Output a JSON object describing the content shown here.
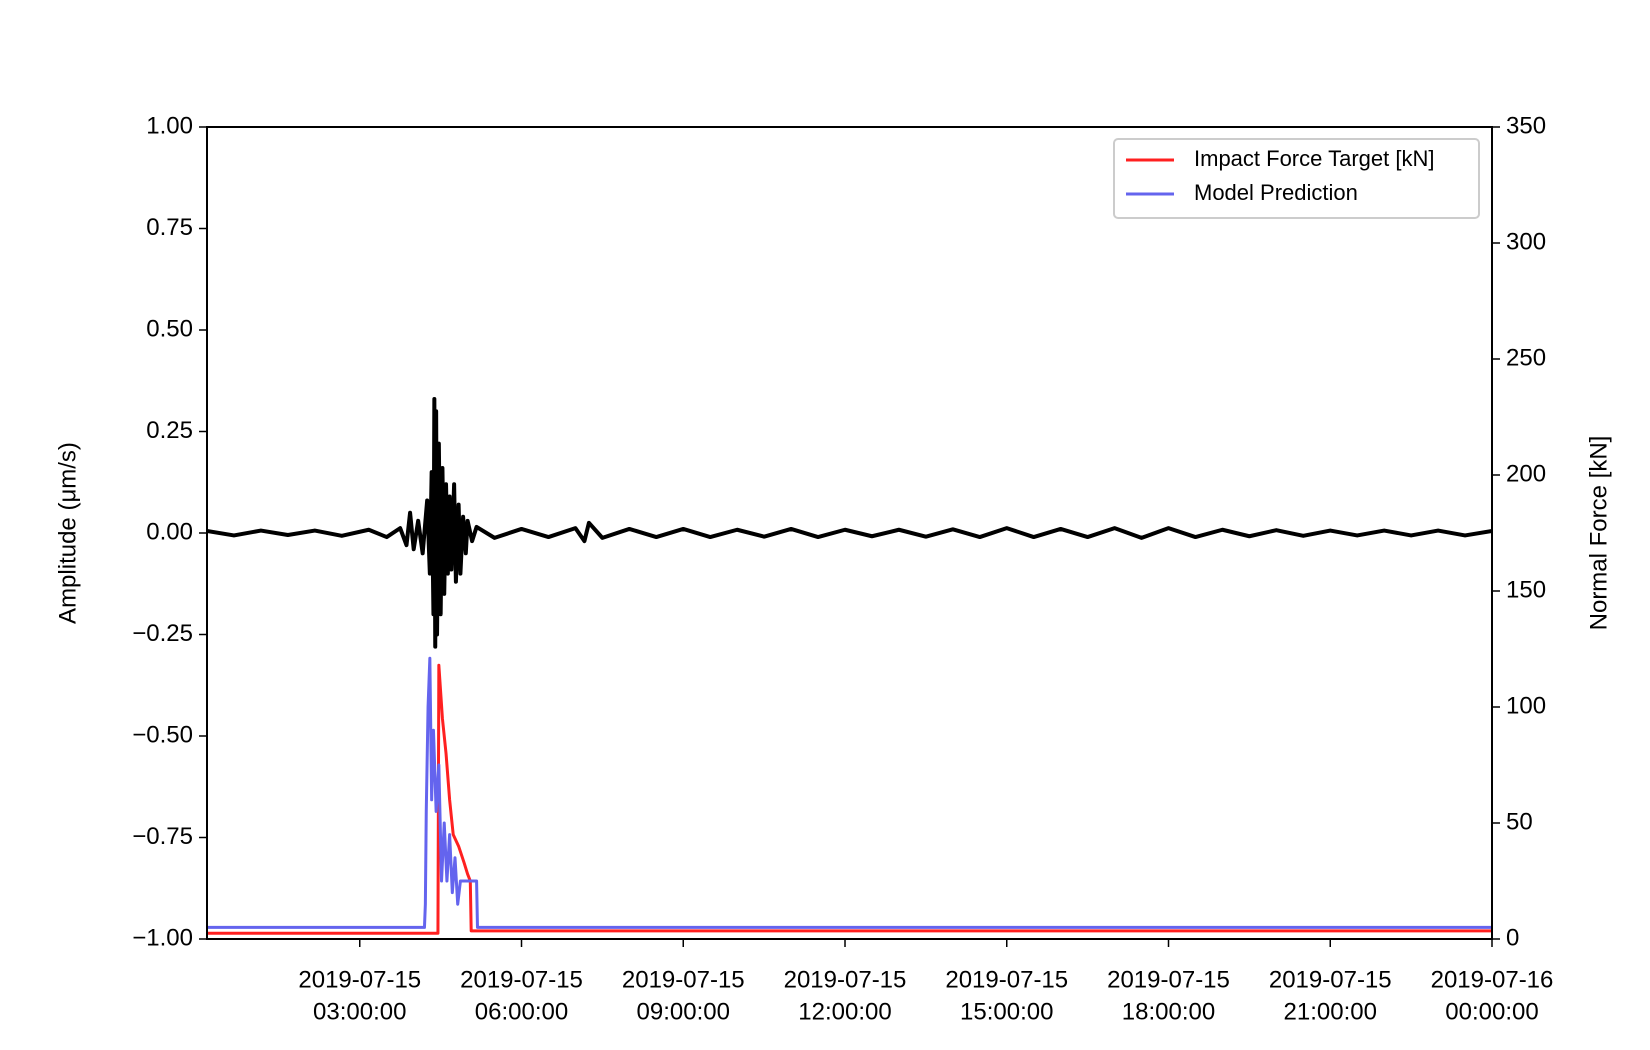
{
  "chart_data": {
    "type": "line",
    "ylabel": "Amplitude (μm/s)",
    "y2label": "Normal Force [kN]",
    "xlim": [
      "2019-07-15 00:10:00",
      "2019-07-16 00:00:00"
    ],
    "ylim": [
      -1,
      1
    ],
    "y2lim": [
      0,
      350
    ],
    "xticks": [
      {
        "value": "2019-07-15 03:00:00",
        "label": [
          "2019-07-15",
          "03:00:00"
        ]
      },
      {
        "value": "2019-07-15 06:00:00",
        "label": [
          "2019-07-15",
          "06:00:00"
        ]
      },
      {
        "value": "2019-07-15 09:00:00",
        "label": [
          "2019-07-15",
          "09:00:00"
        ]
      },
      {
        "value": "2019-07-15 12:00:00",
        "label": [
          "2019-07-15",
          "12:00:00"
        ]
      },
      {
        "value": "2019-07-15 15:00:00",
        "label": [
          "2019-07-15",
          "15:00:00"
        ]
      },
      {
        "value": "2019-07-15 18:00:00",
        "label": [
          "2019-07-15",
          "18:00:00"
        ]
      },
      {
        "value": "2019-07-15 21:00:00",
        "label": [
          "2019-07-15",
          "21:00:00"
        ]
      },
      {
        "value": "2019-07-16 00:00:00",
        "label": [
          "2019-07-16",
          "00:00:00"
        ]
      }
    ],
    "yticks": [
      {
        "value": -1,
        "label": "−1.00"
      },
      {
        "value": -0.75,
        "label": "−0.75"
      },
      {
        "value": -0.5,
        "label": "−0.50"
      },
      {
        "value": -0.25,
        "label": "−0.25"
      },
      {
        "value": 0,
        "label": "0.00"
      },
      {
        "value": 0.25,
        "label": "0.25"
      },
      {
        "value": 0.5,
        "label": "0.50"
      },
      {
        "value": 0.75,
        "label": "0.75"
      },
      {
        "value": 1,
        "label": "1.00"
      }
    ],
    "y2ticks": [
      0,
      50,
      100,
      150,
      200,
      250,
      300,
      350
    ],
    "legend": "upper right",
    "series": [
      {
        "color": "#000000",
        "x": [
          "2019-07-15 00:10:00",
          "2019-07-15 00:40:00",
          "2019-07-15 01:10:00",
          "2019-07-15 01:40:00",
          "2019-07-15 02:10:00",
          "2019-07-15 02:40:00",
          "2019-07-15 03:10:00",
          "2019-07-15 03:30:00",
          "2019-07-15 03:45:00",
          "2019-07-15 03:52:00",
          "2019-07-15 03:56:00",
          "2019-07-15 04:00:00",
          "2019-07-15 04:05:00",
          "2019-07-15 04:10:00",
          "2019-07-15 04:15:00",
          "2019-07-15 04:18:00",
          "2019-07-15 04:20:00",
          "2019-07-15 04:22:00",
          "2019-07-15 04:23:00",
          "2019-07-15 04:24:00",
          "2019-07-15 04:25:00",
          "2019-07-15 04:26:00",
          "2019-07-15 04:28:00",
          "2019-07-15 04:30:00",
          "2019-07-15 04:32:00",
          "2019-07-15 04:34:00",
          "2019-07-15 04:36:00",
          "2019-07-15 04:38:00",
          "2019-07-15 04:40:00",
          "2019-07-15 04:42:00",
          "2019-07-15 04:45:00",
          "2019-07-15 04:47:00",
          "2019-07-15 04:50:00",
          "2019-07-15 04:52:00",
          "2019-07-15 04:55:00",
          "2019-07-15 04:58:00",
          "2019-07-15 05:00:00",
          "2019-07-15 05:05:00",
          "2019-07-15 05:10:00",
          "2019-07-15 05:30:00",
          "2019-07-15 06:00:00",
          "2019-07-15 06:30:00",
          "2019-07-15 07:00:00",
          "2019-07-15 07:10:00",
          "2019-07-15 07:15:00",
          "2019-07-15 07:30:00",
          "2019-07-15 08:00:00",
          "2019-07-15 08:30:00",
          "2019-07-15 09:00:00",
          "2019-07-15 09:30:00",
          "2019-07-15 10:00:00",
          "2019-07-15 10:30:00",
          "2019-07-15 11:00:00",
          "2019-07-15 11:30:00",
          "2019-07-15 12:00:00",
          "2019-07-15 12:30:00",
          "2019-07-15 13:00:00",
          "2019-07-15 13:30:00",
          "2019-07-15 14:00:00",
          "2019-07-15 14:30:00",
          "2019-07-15 15:00:00",
          "2019-07-15 15:30:00",
          "2019-07-15 16:00:00",
          "2019-07-15 16:30:00",
          "2019-07-15 17:00:00",
          "2019-07-15 17:30:00",
          "2019-07-15 18:00:00",
          "2019-07-15 18:30:00",
          "2019-07-15 19:00:00",
          "2019-07-15 19:30:00",
          "2019-07-15 20:00:00",
          "2019-07-15 20:30:00",
          "2019-07-15 21:00:00",
          "2019-07-15 21:30:00",
          "2019-07-15 22:00:00",
          "2019-07-15 22:30:00",
          "2019-07-15 23:00:00",
          "2019-07-15 23:30:00",
          "2019-07-16 00:00:00"
        ],
        "values": [
          0.005,
          -0.006,
          0.006,
          -0.005,
          0.006,
          -0.007,
          0.008,
          -0.01,
          0.012,
          -0.03,
          0.05,
          -0.04,
          0.03,
          -0.05,
          0.08,
          -0.1,
          0.15,
          -0.2,
          0.33,
          -0.28,
          0.3,
          -0.25,
          0.22,
          -0.2,
          0.16,
          -0.15,
          0.12,
          -0.1,
          0.09,
          -0.09,
          0.12,
          -0.12,
          0.07,
          -0.1,
          0.04,
          -0.05,
          0.03,
          -0.02,
          0.015,
          -0.012,
          0.01,
          -0.01,
          0.012,
          -0.02,
          0.025,
          -0.012,
          0.01,
          -0.01,
          0.01,
          -0.01,
          0.008,
          -0.009,
          0.01,
          -0.01,
          0.008,
          -0.008,
          0.008,
          -0.009,
          0.009,
          -0.01,
          0.012,
          -0.01,
          0.01,
          -0.01,
          0.012,
          -0.012,
          0.012,
          -0.01,
          0.008,
          -0.008,
          0.007,
          -0.007,
          0.006,
          -0.006,
          0.006,
          -0.006,
          0.006,
          -0.006,
          0.005
        ]
      },
      {
        "name": "Impact Force Target [kN]",
        "color": "#ff2020",
        "axis": "y2",
        "x": [
          "2019-07-15 00:10:00",
          "2019-07-15 04:27:00",
          "2019-07-15 04:28:00",
          "2019-07-15 04:32:00",
          "2019-07-15 04:36:00",
          "2019-07-15 04:40:00",
          "2019-07-15 04:44:00",
          "2019-07-15 04:50:00",
          "2019-07-15 04:56:00",
          "2019-07-15 05:00:00",
          "2019-07-15 05:03:00",
          "2019-07-15 05:04:00",
          "2019-07-16 00:00:00"
        ],
        "values": [
          2.5,
          2.5,
          118,
          95,
          80,
          60,
          45,
          40,
          33,
          28,
          25,
          3.5,
          3.5
        ]
      },
      {
        "name": "Model Prediction",
        "color": "#6464ee",
        "axis": "y2",
        "x": [
          "2019-07-15 00:10:00",
          "2019-07-15 04:12:00",
          "2019-07-15 04:13:00",
          "2019-07-15 04:14:00",
          "2019-07-15 04:16:00",
          "2019-07-15 04:18:00",
          "2019-07-15 04:20:00",
          "2019-07-15 04:22:00",
          "2019-07-15 04:25:00",
          "2019-07-15 04:28:00",
          "2019-07-15 04:31:00",
          "2019-07-15 04:34:00",
          "2019-07-15 04:37:00",
          "2019-07-15 04:40:00",
          "2019-07-15 04:43:00",
          "2019-07-15 04:46:00",
          "2019-07-15 04:49:00",
          "2019-07-15 04:52:00",
          "2019-07-15 04:58:00",
          "2019-07-15 05:10:00",
          "2019-07-15 05:11:00",
          "2019-07-16 00:00:00"
        ],
        "values": [
          5,
          5,
          15,
          55,
          100,
          121,
          60,
          90,
          55,
          75,
          25,
          50,
          25,
          45,
          20,
          35,
          15,
          25,
          25,
          25,
          5,
          5
        ]
      }
    ]
  }
}
